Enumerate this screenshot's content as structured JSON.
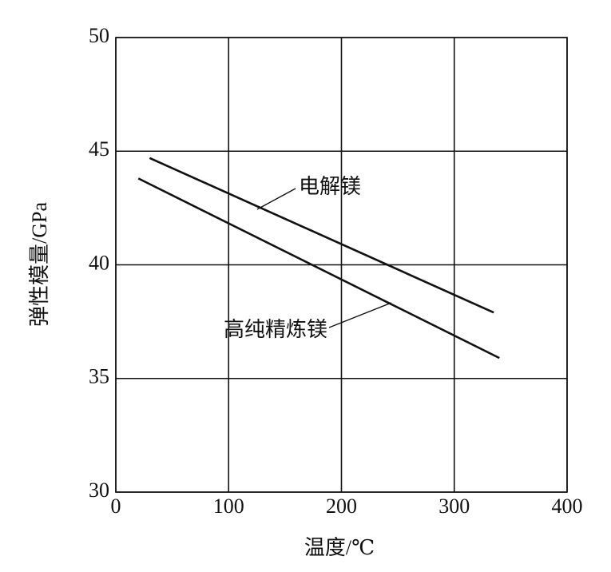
{
  "chart_data": {
    "type": "line",
    "x_label": "温度/℃",
    "y_label": "弹性模量/GPa",
    "xlim": [
      0,
      400
    ],
    "xticks": [
      0,
      100,
      200,
      300,
      400
    ],
    "ylim": [
      30,
      50
    ],
    "yticks": [
      30,
      35,
      40,
      45,
      50
    ],
    "grid": true,
    "series": [
      {
        "name": "电解镁",
        "color": "#111111",
        "x": [
          30,
          335
        ],
        "values": [
          44.7,
          37.9
        ]
      },
      {
        "name": "高纯精炼镁",
        "color": "#111111",
        "x": [
          20,
          340
        ],
        "values": [
          43.8,
          35.9
        ]
      }
    ]
  }
}
